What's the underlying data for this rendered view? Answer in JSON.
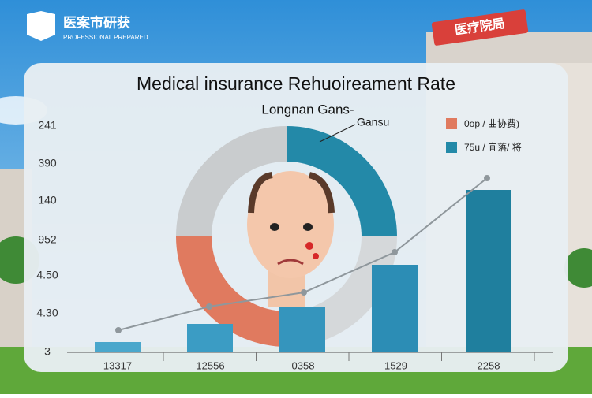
{
  "logo": {
    "name": "医案市研获",
    "tagline": "PROFESSIONAL PREPARED"
  },
  "sign": "医疗院局",
  "title": "Medical insurance Rehuoireament Rate",
  "subtitle": "Longnan Gans-",
  "callout": "Gansu",
  "legend": [
    "0op / 曲协费)",
    "75u / 宜落/ 将"
  ],
  "y_labels": [
    "241",
    "390",
    "140",
    "952",
    "4.50",
    "4.30",
    "3"
  ],
  "x_labels": [
    "13317",
    "12556",
    "0358",
    "1529",
    "2258"
  ]
}
